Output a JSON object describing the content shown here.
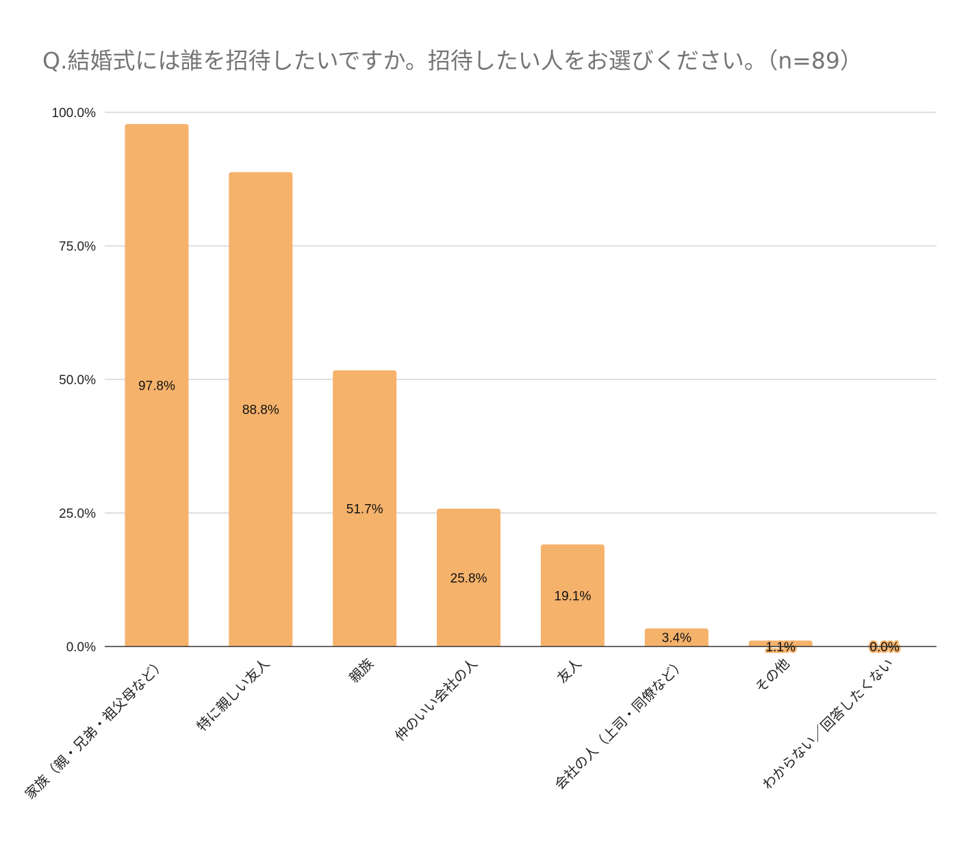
{
  "chart_data": {
    "type": "bar",
    "title": "Q.結婚式には誰を招待したいですか。招待したい人をお選びください。（n=89）",
    "categories": [
      "家族（親・兄弟・祖父母など）",
      "特に親しい友人",
      "親族",
      "仲のいい会社の人",
      "友人",
      "会社の人（上司・同僚など）",
      "その他",
      "わからない／回答したくない"
    ],
    "values": [
      97.8,
      88.8,
      51.7,
      25.8,
      19.1,
      3.4,
      1.1,
      0.0
    ],
    "data_labels": [
      "97.8%",
      "88.8%",
      "51.7%",
      "25.8%",
      "19.1%",
      "3.4%",
      "1.1%",
      "0.0%"
    ],
    "ylim": [
      0,
      100
    ],
    "yticks": [
      0,
      25,
      50,
      75,
      100
    ],
    "ytick_labels": [
      "0.0%",
      "25.0%",
      "50.0%",
      "75.0%",
      "100.0%"
    ],
    "grid": true,
    "bar_color": "#F5B26B",
    "xlabel": "",
    "ylabel": ""
  }
}
